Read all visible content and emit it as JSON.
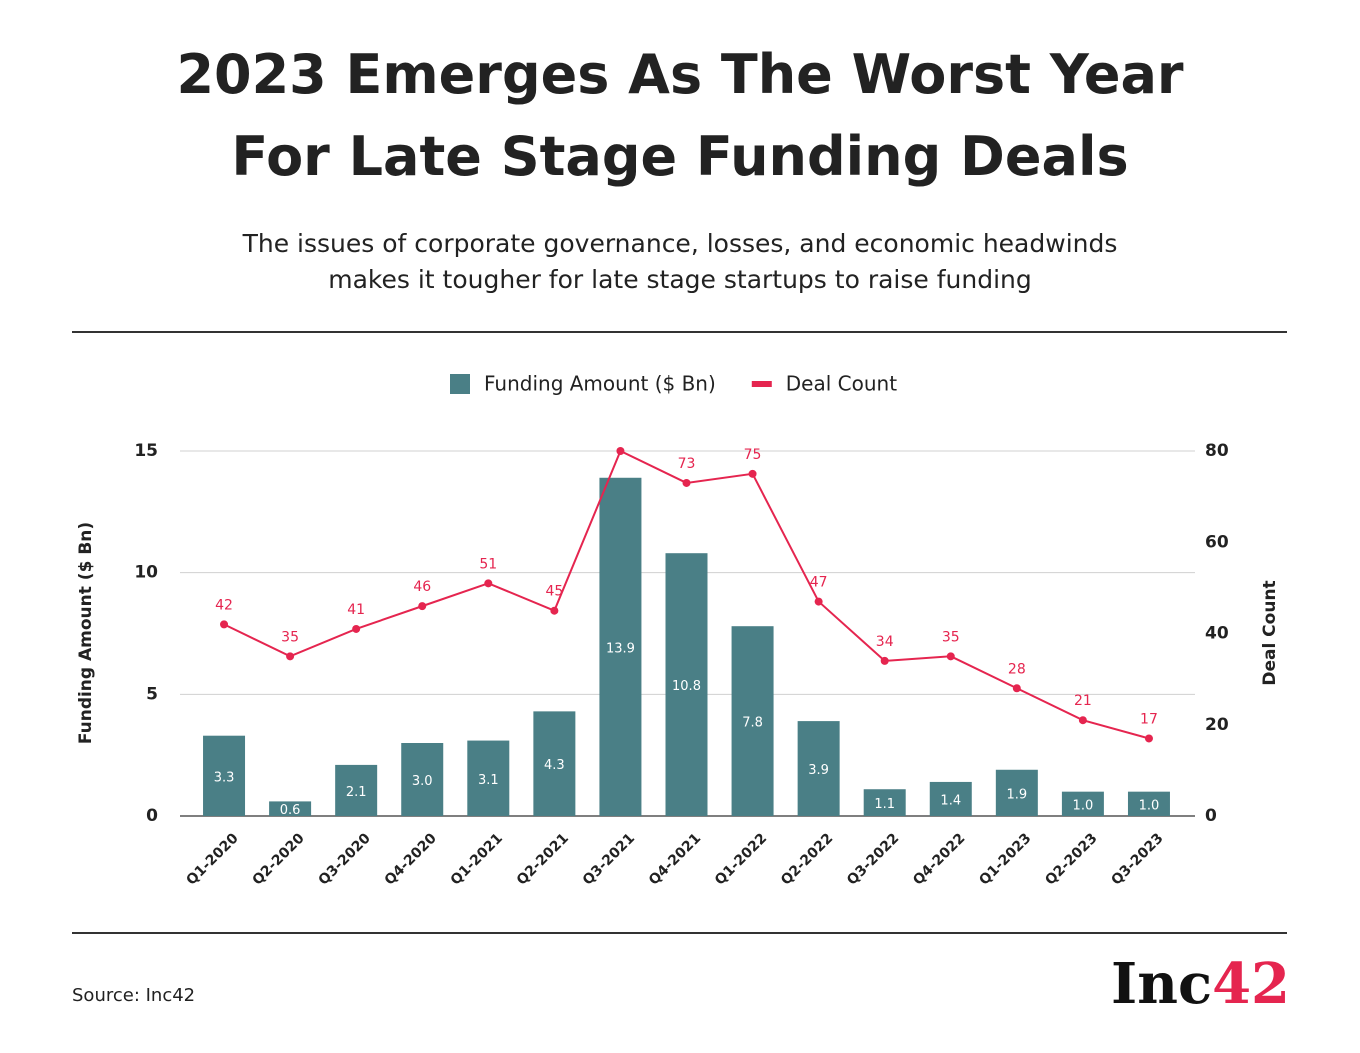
{
  "chart_data": {
    "type": "bar-line",
    "title": "2023 Emerges As The Worst Year For Late Stage Funding Deals",
    "subtitle": "The issues of corporate governance, losses, and economic headwinds makes it tougher for late stage startups to raise funding",
    "categories": [
      "Q1-2020",
      "Q2-2020",
      "Q3-2020",
      "Q4-2020",
      "Q1-2021",
      "Q2-2021",
      "Q3-2021",
      "Q4-2021",
      "Q1-2022",
      "Q2-2022",
      "Q3-2022",
      "Q4-2022",
      "Q1-2023",
      "Q2-2023",
      "Q3-2023"
    ],
    "series": [
      {
        "name": "Funding Amount ($ Bn)",
        "type": "bar",
        "color": "#4a7f86",
        "values": [
          3.3,
          0.6,
          2.1,
          3.0,
          3.1,
          4.3,
          13.9,
          10.8,
          7.8,
          3.9,
          1.1,
          1.4,
          1.9,
          1.0,
          1.0
        ],
        "value_labels": [
          "3.3",
          "0.6",
          "2.1",
          "3.0",
          "3.1",
          "4.3",
          "13.9",
          "10.8",
          "7.8",
          "3.9",
          "1.1",
          "1.4",
          "1.9",
          "1.0",
          "1.0"
        ]
      },
      {
        "name": "Deal Count",
        "type": "line",
        "axis": "y2",
        "color": "#e5254f",
        "values": [
          42,
          35,
          41,
          46,
          51,
          45,
          80,
          73,
          75,
          47,
          34,
          35,
          28,
          21,
          17
        ],
        "value_labels": [
          "42",
          "35",
          "41",
          "46",
          "51",
          "45",
          null,
          "73",
          "75",
          "47",
          "34",
          "35",
          "28",
          "21",
          "17"
        ]
      }
    ],
    "ylabel": "Funding Amount ($ Bn)",
    "y2label": "Deal Count",
    "ylim": [
      0,
      15
    ],
    "yticks": [
      0,
      5,
      10,
      15
    ],
    "y2lim": [
      0,
      80
    ],
    "y2ticks": [
      0,
      20,
      40,
      60,
      80
    ],
    "grid": true,
    "legend": "top",
    "source": "Source: Inc42",
    "logo": [
      "Inc",
      "42"
    ]
  }
}
